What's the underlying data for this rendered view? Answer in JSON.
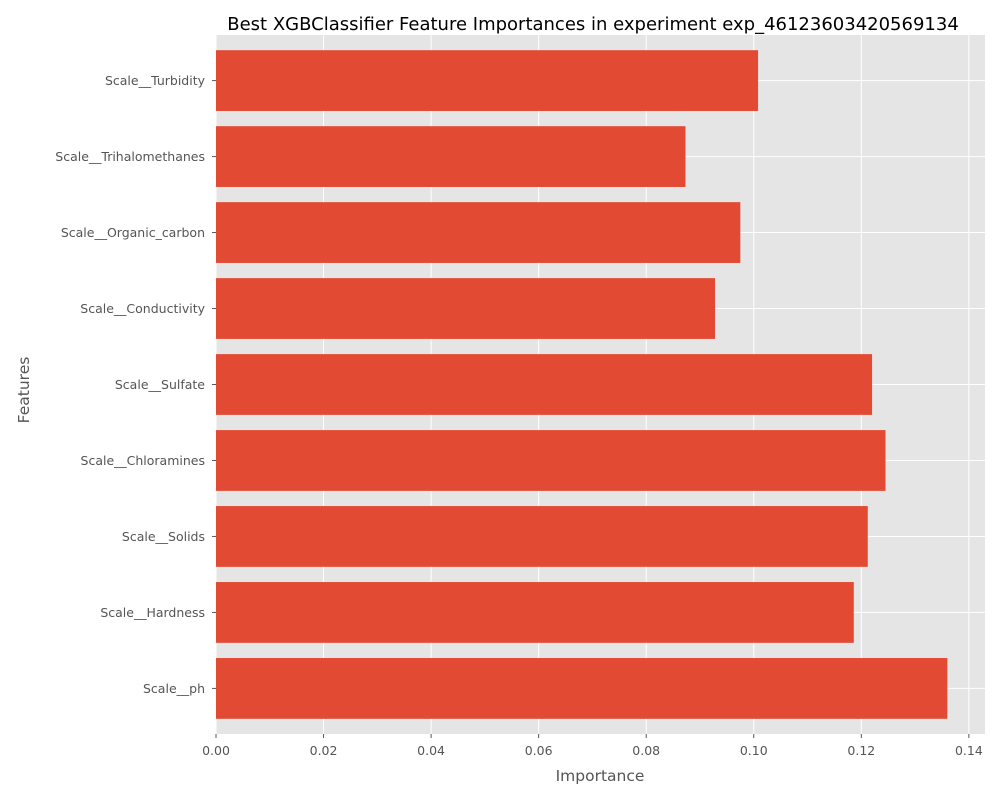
{
  "chart_data": {
    "type": "bar",
    "orientation": "horizontal",
    "title": "Best XGBClassifier Feature Importances in experiment exp_46123603420569134",
    "xlabel": "Importance",
    "ylabel": "Features",
    "categories": [
      "Scale__ph",
      "Scale__Hardness",
      "Scale__Solids",
      "Scale__Chloramines",
      "Scale__Sulfate",
      "Scale__Conductivity",
      "Scale__Organic_carbon",
      "Scale__Trihalomethanes",
      "Scale__Turbidity"
    ],
    "values": [
      0.136,
      0.1186,
      0.1212,
      0.1245,
      0.122,
      0.0928,
      0.0975,
      0.0873,
      0.1008
    ],
    "xlim": [
      0,
      0.143
    ],
    "xticks": [
      "0.00",
      "0.02",
      "0.04",
      "0.06",
      "0.08",
      "0.10",
      "0.12",
      "0.14"
    ],
    "xtick_values": [
      0,
      0.02,
      0.04,
      0.06,
      0.08,
      0.1,
      0.12,
      0.14
    ],
    "grid": true,
    "bar_color": "#E24A33",
    "background_color": "#E5E5E5",
    "grid_color": "#FFFFFF"
  }
}
